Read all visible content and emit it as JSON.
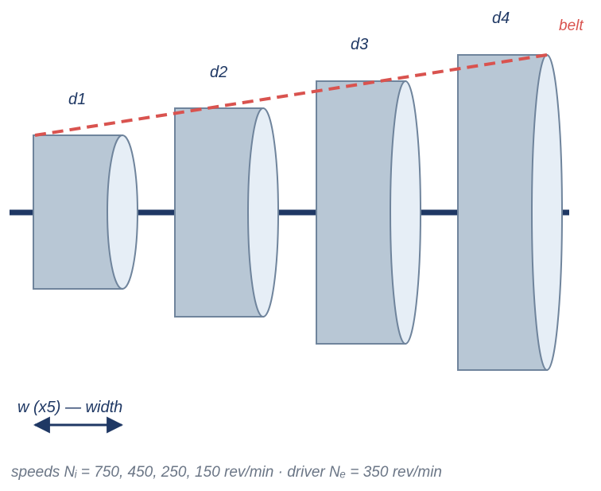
{
  "diagram": {
    "pulleys": [
      {
        "id": "d1",
        "label": "d1"
      },
      {
        "id": "d2",
        "label": "d2"
      },
      {
        "id": "d3",
        "label": "d3"
      },
      {
        "id": "d4",
        "label": "d4"
      }
    ],
    "belt_label": "belt",
    "width_label": "w (x5) — width",
    "footer": "speeds Nᵢ = 750, 450, 250, 150 rev/min · driver Nₑ = 350 rev/min"
  },
  "colors": {
    "pulley_fill": "#b8c7d5",
    "pulley_face": "#e6eef6",
    "pulley_stroke": "#6f849c",
    "shaft": "#1f3864",
    "belt": "#d9534f",
    "label": "#1f3864",
    "footer": "#6b7686"
  }
}
